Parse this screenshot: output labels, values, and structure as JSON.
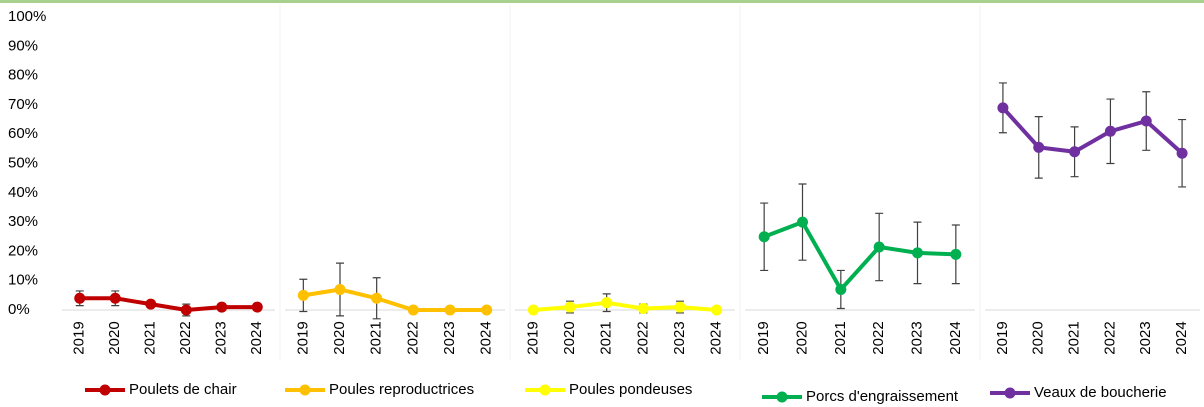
{
  "chart_data": {
    "type": "line",
    "categories": [
      "2019",
      "2020",
      "2021",
      "2022",
      "2023",
      "2024"
    ],
    "ylim": [
      0,
      100
    ],
    "yticks": [
      {
        "value": 0,
        "label": "0%"
      },
      {
        "value": 10,
        "label": "10%"
      },
      {
        "value": 20,
        "label": "20%"
      },
      {
        "value": 30,
        "label": "30%"
      },
      {
        "value": 40,
        "label": "40%"
      },
      {
        "value": 50,
        "label": "50%"
      },
      {
        "value": 60,
        "label": "60%"
      },
      {
        "value": 70,
        "label": "70%"
      },
      {
        "value": 80,
        "label": "80%"
      },
      {
        "value": 90,
        "label": "90%"
      },
      {
        "value": 100,
        "label": "100%"
      }
    ],
    "series": [
      {
        "name": "Poulets de chair",
        "color": "#c00000",
        "values": [
          4,
          4,
          2,
          0,
          1,
          1
        ],
        "errors": [
          2.5,
          2.5,
          0,
          2,
          0,
          0
        ]
      },
      {
        "name": "Poules reproductrices",
        "color": "#ffc000",
        "values": [
          5,
          7,
          4,
          0,
          0,
          0
        ],
        "errors": [
          5.5,
          9,
          7,
          0,
          0,
          0
        ]
      },
      {
        "name": "Poules pondeuses",
        "color": "#ffff00",
        "values": [
          0,
          1,
          2.5,
          0.5,
          1,
          0
        ],
        "errors": [
          0,
          2,
          3,
          1.5,
          2,
          0
        ]
      },
      {
        "name": "Porcs d'engraissement",
        "color": "#00b050",
        "values": [
          25,
          30,
          7,
          21.5,
          19.5,
          19
        ],
        "errors": [
          11.5,
          13,
          6.5,
          11.5,
          10.5,
          10
        ]
      },
      {
        "name": "Veaux de boucherie",
        "color": "#7030a0",
        "values": [
          69,
          55.5,
          54,
          61,
          64.5,
          53.5
        ],
        "errors": [
          8.5,
          10.5,
          8.5,
          11,
          10,
          11.5
        ]
      }
    ]
  }
}
